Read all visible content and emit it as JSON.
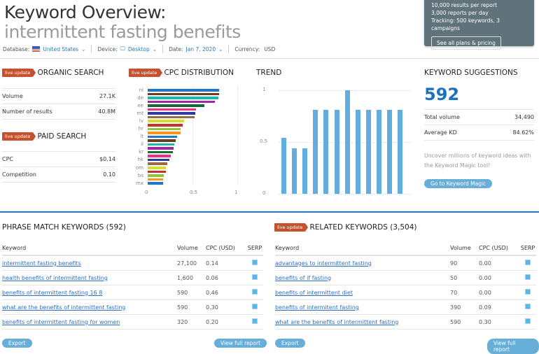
{
  "header": {
    "title_prefix": "Keyword Overview:",
    "keyword": "intermittent fasting benefits",
    "filters": {
      "database_label": "Database:",
      "database": "United States",
      "device_label": "Device:",
      "device": "Desktop",
      "date_label": "Date:",
      "date": "Jan 7, 2020",
      "currency_label": "Currency:",
      "currency": "USD"
    }
  },
  "promo": {
    "lines": [
      "10,000 results per report",
      "3,000 reports per day",
      "Tracking: 500 keywords, 3 campaigns"
    ],
    "button": "See all plans & pricing"
  },
  "badge": "live update",
  "organic": {
    "title": "ORGANIC SEARCH",
    "rows": [
      {
        "label": "Volume",
        "value": "27.1K"
      },
      {
        "label": "Number of results",
        "value": "40.8M"
      }
    ]
  },
  "paid": {
    "title": "PAID SEARCH",
    "rows": [
      {
        "label": "CPC",
        "value": "$0.14"
      },
      {
        "label": "Competition",
        "value": "0.10"
      }
    ]
  },
  "cpc_distribution": {
    "title": "CPC DISTRIBUTION"
  },
  "trend": {
    "title": "TREND"
  },
  "chart_data": [
    {
      "type": "bar",
      "orientation": "horizontal",
      "title": "CPC DISTRIBUTION",
      "tick_labels": [
        "nl",
        "de",
        "ee",
        "mt",
        "lv",
        "hr",
        "lt",
        "il",
        "kr",
        "hk",
        "om",
        "bs",
        "mx"
      ],
      "values": [
        0.8,
        0.8,
        0.79,
        0.75,
        0.63,
        0.54,
        0.53,
        0.52,
        0.41,
        0.39,
        0.37,
        0.37,
        0.33,
        0.31,
        0.3,
        0.29,
        0.28,
        0.26,
        0.24,
        0.22,
        0.2,
        0.2,
        0.18,
        0.17,
        0.17
      ],
      "colors": [
        "#1f77c9",
        "#6b3d1a",
        "#1fb5a8",
        "#9b2a9e",
        "#136b3a",
        "#ec2f86",
        "#2e3a9e",
        "#9a6a45",
        "#d6dd2a",
        "#c9302c",
        "#8cc63f",
        "#f7941d"
      ],
      "xlim": [
        0,
        1
      ],
      "xticks": [
        "0",
        "0.5",
        "1"
      ],
      "grid": true
    },
    {
      "type": "bar",
      "title": "TREND",
      "values": [
        0.54,
        0.44,
        0.44,
        0.81,
        0.81,
        0.81,
        1,
        0.81,
        0.81,
        0.81,
        0.81,
        0.81
      ],
      "ylim": [
        0,
        1
      ],
      "yticks": [
        "0",
        "0.5",
        "1"
      ],
      "color": "#62ade0",
      "grid": true
    }
  ],
  "suggestions": {
    "title": "KEYWORD SUGGESTIONS",
    "count": "592",
    "rows": [
      {
        "label": "Total volume",
        "value": "34,490"
      },
      {
        "label": "Average KD",
        "value": "84.62%"
      }
    ],
    "text": "Uncover millions of keyword ideas with the Keyword Magic tool!",
    "button": "Go to Keyword Magic"
  },
  "phrase": {
    "title": "PHRASE MATCH KEYWORDS (592)",
    "columns": [
      "Keyword",
      "Volume",
      "CPC (USD)",
      "SERP"
    ],
    "rows": [
      [
        "intermittent fasting benefits",
        "27,100",
        "0.14"
      ],
      [
        "health benefits of intermittent fasting",
        "1,600",
        "0.06"
      ],
      [
        "benefits of intermittent fasting 16 8",
        "590",
        "0.46"
      ],
      [
        "what are the benefits of intermittent fasting",
        "590",
        "0.30"
      ],
      [
        "benefits of intermittent fasting for women",
        "320",
        "0.20"
      ]
    ],
    "export": "Export",
    "full": "View full report"
  },
  "related": {
    "title": "RELATED KEYWORDS (3,504)",
    "columns": [
      "Keyword",
      "Volume",
      "CPC (USD)",
      "SERP"
    ],
    "rows": [
      [
        "advantages to intermittent fasting",
        "90",
        "0.00"
      ],
      [
        "benefits of if fasting",
        "50",
        "0.00"
      ],
      [
        "benefits of intermittent diet",
        "70",
        "0.00"
      ],
      [
        "benefits of intermitent fasting",
        "390",
        "0.09"
      ],
      [
        "what are the benefits of intermittent fasting",
        "590",
        "0.30"
      ]
    ],
    "export": "Export",
    "full": "View full report"
  }
}
